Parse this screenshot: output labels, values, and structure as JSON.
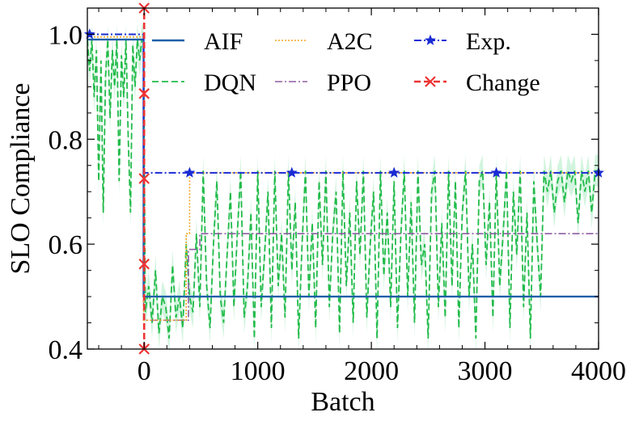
{
  "chart_data": {
    "type": "line",
    "title": "",
    "xlabel": "Batch",
    "ylabel": "SLO Compliance",
    "xlim": [
      -500,
      4000
    ],
    "ylim": [
      0.4,
      1.05
    ],
    "xticks": [
      0,
      1000,
      2000,
      3000,
      4000
    ],
    "xtick_labels": [
      "0",
      "1000",
      "2000",
      "3000",
      "4000"
    ],
    "yticks": [
      0.4,
      0.6,
      0.8,
      1.0
    ],
    "ytick_labels": [
      "0.4",
      "0.6",
      "0.8",
      "1.0"
    ],
    "legend_position": "top-right",
    "series": [
      {
        "name": "AIF",
        "color": "#1f5fa8",
        "style": "solid",
        "x": [
          -500,
          -5,
          -5,
          4000
        ],
        "y": [
          0.99,
          0.99,
          0.5,
          0.5
        ]
      },
      {
        "name": "DQN",
        "color": "#22bb4a",
        "style": "dashed",
        "x": [
          -500,
          -480,
          -460,
          -440,
          -420,
          -400,
          -380,
          -360,
          -340,
          -320,
          -300,
          -280,
          -260,
          -240,
          -220,
          -200,
          -180,
          -160,
          -140,
          -120,
          -100,
          -80,
          -60,
          -40,
          -20,
          -5,
          10,
          40,
          70,
          100,
          130,
          160,
          190,
          220,
          250,
          280,
          310,
          340,
          370,
          400,
          430,
          460,
          490,
          520,
          550,
          580,
          610,
          640,
          670,
          700,
          730,
          760,
          790,
          820,
          850,
          880,
          910,
          940,
          970,
          1000,
          1030,
          1060,
          1090,
          1120,
          1150,
          1180,
          1210,
          1240,
          1270,
          1300,
          1330,
          1360,
          1390,
          1420,
          1450,
          1480,
          1510,
          1540,
          1570,
          1600,
          1630,
          1660,
          1690,
          1720,
          1750,
          1780,
          1810,
          1840,
          1870,
          1900,
          1930,
          1960,
          1990,
          2020,
          2050,
          2080,
          2110,
          2140,
          2170,
          2200,
          2230,
          2260,
          2290,
          2320,
          2350,
          2380,
          2410,
          2440,
          2470,
          2500,
          2530,
          2560,
          2590,
          2620,
          2650,
          2680,
          2710,
          2740,
          2770,
          2800,
          2830,
          2860,
          2890,
          2920,
          2950,
          2980,
          3010,
          3040,
          3070,
          3100,
          3130,
          3160,
          3190,
          3220,
          3250,
          3280,
          3310,
          3340,
          3370,
          3400,
          3430,
          3460,
          3490,
          3520,
          3550,
          3580,
          3610,
          3640,
          3670,
          3700,
          3730,
          3760,
          3790,
          3820,
          3850,
          3880,
          3910,
          3940,
          3970,
          4000
        ],
        "y": [
          0.99,
          0.93,
          0.99,
          0.88,
          0.97,
          0.72,
          0.95,
          0.66,
          0.92,
          0.99,
          0.84,
          0.97,
          0.9,
          0.99,
          0.72,
          0.96,
          0.88,
          0.99,
          0.8,
          0.66,
          0.98,
          0.9,
          0.99,
          0.95,
          0.99,
          0.99,
          0.47,
          0.52,
          0.45,
          0.55,
          0.43,
          0.5,
          0.48,
          0.42,
          0.56,
          0.46,
          0.5,
          0.44,
          0.6,
          0.5,
          0.47,
          0.62,
          0.48,
          0.74,
          0.52,
          0.44,
          0.6,
          0.72,
          0.5,
          0.45,
          0.58,
          0.7,
          0.48,
          0.62,
          0.74,
          0.46,
          0.52,
          0.66,
          0.42,
          0.74,
          0.48,
          0.58,
          0.7,
          0.44,
          0.74,
          0.52,
          0.62,
          0.46,
          0.74,
          0.55,
          0.68,
          0.42,
          0.6,
          0.74,
          0.5,
          0.64,
          0.44,
          0.72,
          0.56,
          0.74,
          0.48,
          0.62,
          0.7,
          0.43,
          0.74,
          0.52,
          0.66,
          0.45,
          0.72,
          0.58,
          0.74,
          0.46,
          0.6,
          0.7,
          0.42,
          0.74,
          0.54,
          0.66,
          0.48,
          0.72,
          0.44,
          0.62,
          0.74,
          0.5,
          0.68,
          0.45,
          0.74,
          0.56,
          0.6,
          0.42,
          0.7,
          0.74,
          0.48,
          0.64,
          0.46,
          0.74,
          0.52,
          0.72,
          0.44,
          0.66,
          0.74,
          0.5,
          0.6,
          0.42,
          0.72,
          0.74,
          0.56,
          0.68,
          0.46,
          0.74,
          0.52,
          0.62,
          0.74,
          0.44,
          0.7,
          0.58,
          0.74,
          0.48,
          0.66,
          0.42,
          0.72,
          0.6,
          0.5,
          0.74,
          0.7,
          0.74,
          0.66,
          0.72,
          0.74,
          0.68,
          0.74,
          0.72,
          0.74,
          0.64,
          0.74,
          0.7,
          0.74,
          0.66,
          0.74,
          0.74
        ]
      },
      {
        "name": "A2C",
        "color": "#f5a623",
        "style": "dotted",
        "x": [
          -500,
          -5,
          -5,
          370,
          370,
          400,
          400,
          4000
        ],
        "y": [
          0.995,
          0.995,
          0.455,
          0.455,
          0.62,
          0.62,
          0.736,
          0.736
        ]
      },
      {
        "name": "PPO",
        "color": "#8e5ea2",
        "style": "dashdot",
        "x": [
          -500,
          -5,
          -5,
          390,
          390,
          490,
          490,
          4000
        ],
        "y": [
          0.99,
          0.99,
          0.455,
          0.455,
          0.59,
          0.59,
          0.62,
          0.62
        ]
      },
      {
        "name": "Exp.",
        "color": "#1a2bd4",
        "style": "dashdot",
        "marker": "star",
        "x": [
          -500,
          -5,
          -5,
          4000
        ],
        "y": [
          1.0,
          1.0,
          0.736,
          0.736
        ],
        "marker_x": [
          -480,
          400,
          1300,
          2200,
          3100,
          4000
        ],
        "marker_y": [
          1.0,
          0.736,
          0.736,
          0.736,
          0.736,
          0.736
        ]
      },
      {
        "name": "Change",
        "color": "#ee3333",
        "style": "dashed",
        "marker": "x",
        "x": [
          0,
          0
        ],
        "y": [
          0.4,
          1.05
        ],
        "marker_x": [
          0,
          0,
          0,
          0,
          0
        ],
        "marker_y": [
          0.4,
          0.562,
          0.725,
          0.887,
          1.05
        ]
      }
    ]
  }
}
